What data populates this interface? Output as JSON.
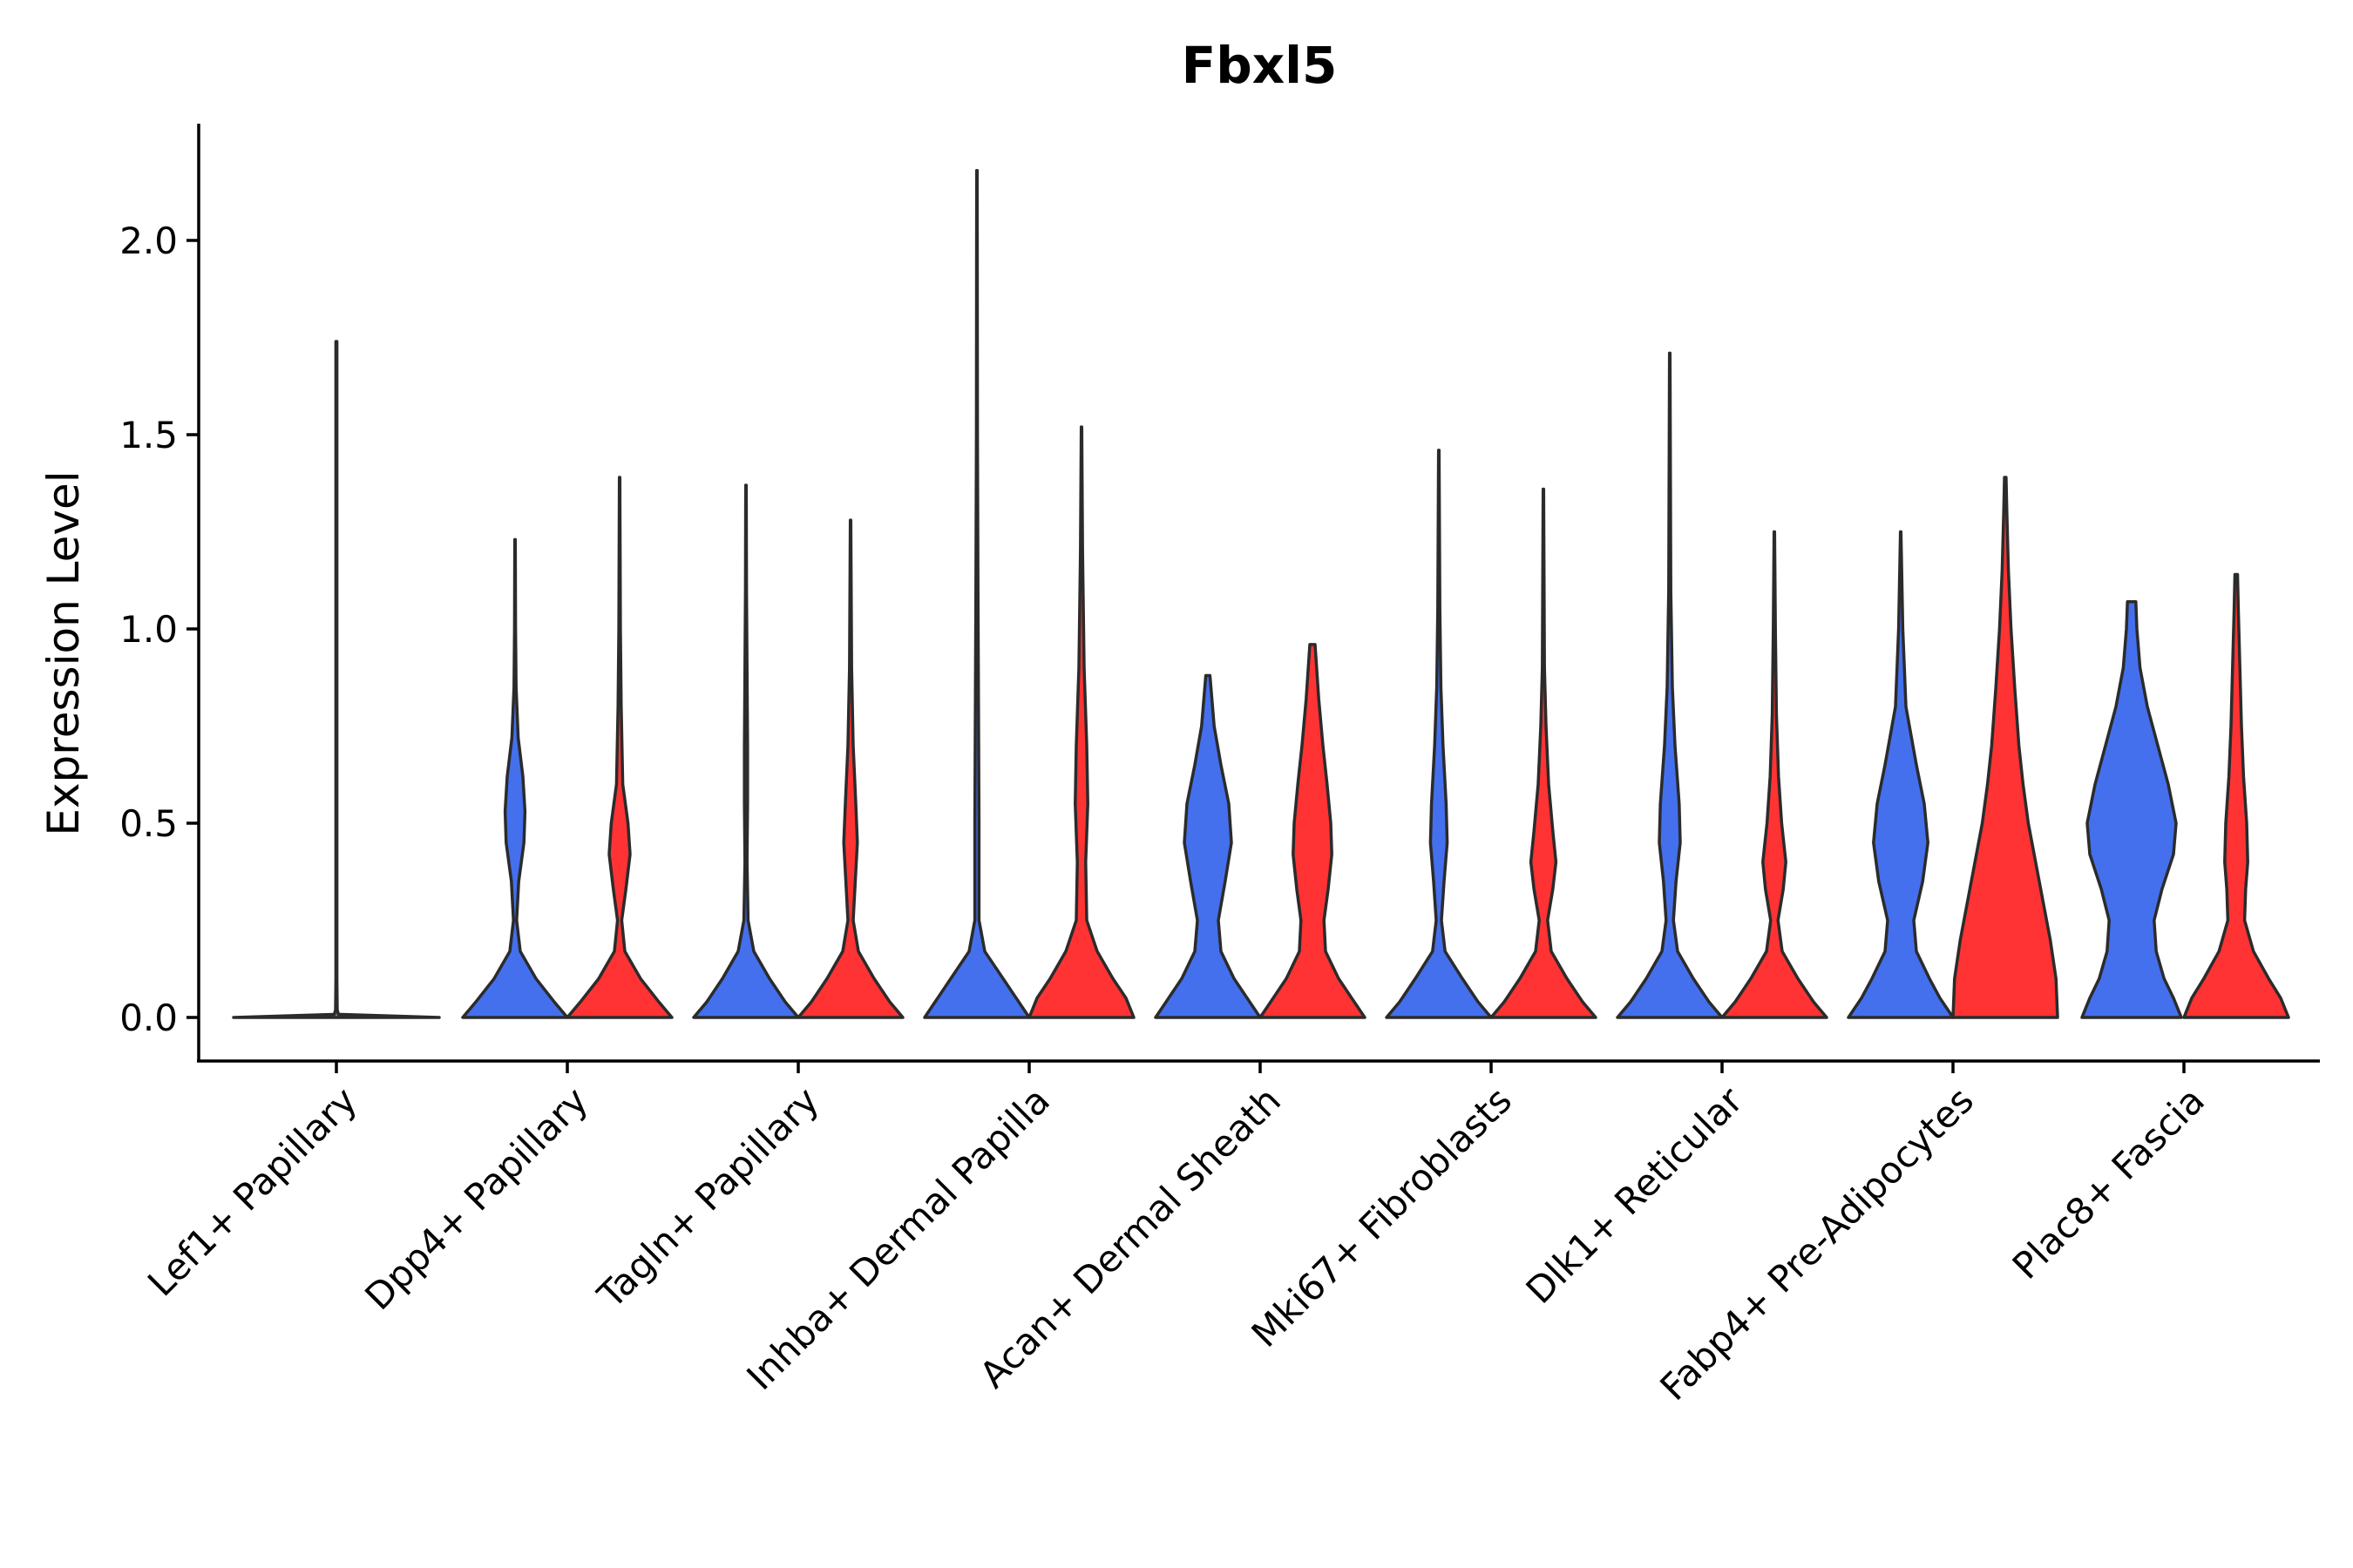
{
  "chart_data": {
    "type": "violin",
    "title": "Fbxl5",
    "xlabel": "",
    "ylabel": "Expression Level",
    "ylim": [
      -0.11,
      2.3
    ],
    "yticks": [
      0.0,
      0.5,
      1.0,
      1.5,
      2.0
    ],
    "ytick_labels": [
      "0.0",
      "0.5",
      "1.0",
      "1.5",
      "2.0"
    ],
    "categories": [
      "Lef1+ Papillary",
      "Dpp4+ Papillary",
      "Tagln+ Papillary",
      "Inhba+ Dermal Papilla",
      "Acan+ Dermal Sheath",
      "Mki67+ Fibroblasts",
      "Dlk1+ Reticular",
      "Fabp4+ Pre-Adipocytes",
      "Plac8+ Fascia"
    ],
    "series_colors": {
      "blue": "#4470EE",
      "red": "#FF3333",
      "grey": "#888888"
    },
    "violins": [
      {
        "category": "Lef1+ Papillary",
        "group": "grey",
        "max": 1.74,
        "profile": [
          [
            0,
            1
          ],
          [
            0.008,
            0.02
          ],
          [
            0.02,
            0.008
          ],
          [
            0.1,
            0.005
          ],
          [
            1.74,
            0.005
          ]
        ]
      },
      {
        "category": "Dpp4+ Papillary",
        "group": "blue",
        "max": 1.23,
        "profile": [
          [
            0,
            1
          ],
          [
            0.04,
            0.75
          ],
          [
            0.1,
            0.4
          ],
          [
            0.17,
            0.1
          ],
          [
            0.25,
            0.03
          ],
          [
            0.35,
            0.07
          ],
          [
            0.45,
            0.17
          ],
          [
            0.53,
            0.19
          ],
          [
            0.62,
            0.15
          ],
          [
            0.72,
            0.06
          ],
          [
            0.85,
            0.02
          ],
          [
            1.0,
            0.01
          ],
          [
            1.23,
            0.005
          ]
        ]
      },
      {
        "category": "Dpp4+ Papillary",
        "group": "red",
        "max": 1.39,
        "profile": [
          [
            0,
            1
          ],
          [
            0.04,
            0.75
          ],
          [
            0.1,
            0.4
          ],
          [
            0.17,
            0.1
          ],
          [
            0.25,
            0.04
          ],
          [
            0.33,
            0.12
          ],
          [
            0.42,
            0.2
          ],
          [
            0.5,
            0.16
          ],
          [
            0.6,
            0.06
          ],
          [
            0.8,
            0.03
          ],
          [
            1.0,
            0.015
          ],
          [
            1.39,
            0.005
          ]
        ]
      },
      {
        "category": "Tagln+ Papillary",
        "group": "blue",
        "max": 1.37,
        "profile": [
          [
            0,
            1
          ],
          [
            0.04,
            0.75
          ],
          [
            0.1,
            0.45
          ],
          [
            0.17,
            0.15
          ],
          [
            0.25,
            0.04
          ],
          [
            0.4,
            0.02
          ],
          [
            0.55,
            0.03
          ],
          [
            0.7,
            0.03
          ],
          [
            0.9,
            0.02
          ],
          [
            1.1,
            0.01
          ],
          [
            1.37,
            0.005
          ]
        ]
      },
      {
        "category": "Tagln+ Papillary",
        "group": "red",
        "max": 1.28,
        "profile": [
          [
            0,
            1
          ],
          [
            0.04,
            0.75
          ],
          [
            0.1,
            0.45
          ],
          [
            0.17,
            0.15
          ],
          [
            0.25,
            0.05
          ],
          [
            0.35,
            0.09
          ],
          [
            0.45,
            0.13
          ],
          [
            0.55,
            0.1
          ],
          [
            0.7,
            0.05
          ],
          [
            0.9,
            0.02
          ],
          [
            1.28,
            0.005
          ]
        ]
      },
      {
        "category": "Inhba+ Dermal Papilla",
        "group": "blue",
        "max": 2.18,
        "profile": [
          [
            0,
            1
          ],
          [
            0.04,
            0.8
          ],
          [
            0.1,
            0.5
          ],
          [
            0.17,
            0.15
          ],
          [
            0.25,
            0.04
          ],
          [
            0.5,
            0.04
          ],
          [
            0.8,
            0.03
          ],
          [
            1.1,
            0.02
          ],
          [
            1.5,
            0.01
          ],
          [
            2.18,
            0.005
          ]
        ]
      },
      {
        "category": "Inhba+ Dermal Papilla",
        "group": "red",
        "max": 1.52,
        "profile": [
          [
            0,
            1
          ],
          [
            0.05,
            0.85
          ],
          [
            0.1,
            0.6
          ],
          [
            0.17,
            0.3
          ],
          [
            0.25,
            0.1
          ],
          [
            0.4,
            0.08
          ],
          [
            0.55,
            0.12
          ],
          [
            0.7,
            0.1
          ],
          [
            0.9,
            0.05
          ],
          [
            1.2,
            0.02
          ],
          [
            1.52,
            0.005
          ]
        ]
      },
      {
        "category": "Acan+ Dermal Sheath",
        "group": "blue",
        "max": 0.88,
        "profile": [
          [
            0,
            1
          ],
          [
            0.05,
            0.75
          ],
          [
            0.1,
            0.5
          ],
          [
            0.17,
            0.25
          ],
          [
            0.25,
            0.2
          ],
          [
            0.35,
            0.33
          ],
          [
            0.45,
            0.45
          ],
          [
            0.55,
            0.4
          ],
          [
            0.65,
            0.25
          ],
          [
            0.75,
            0.12
          ],
          [
            0.88,
            0.04
          ]
        ]
      },
      {
        "category": "Acan+ Dermal Sheath",
        "group": "red",
        "max": 0.96,
        "profile": [
          [
            0,
            1
          ],
          [
            0.05,
            0.75
          ],
          [
            0.1,
            0.5
          ],
          [
            0.17,
            0.25
          ],
          [
            0.25,
            0.22
          ],
          [
            0.33,
            0.3
          ],
          [
            0.42,
            0.37
          ],
          [
            0.5,
            0.35
          ],
          [
            0.6,
            0.28
          ],
          [
            0.7,
            0.2
          ],
          [
            0.82,
            0.12
          ],
          [
            0.96,
            0.05
          ]
        ]
      },
      {
        "category": "Mki67+ Fibroblasts",
        "group": "blue",
        "max": 1.46,
        "profile": [
          [
            0,
            1
          ],
          [
            0.04,
            0.75
          ],
          [
            0.1,
            0.45
          ],
          [
            0.17,
            0.12
          ],
          [
            0.25,
            0.05
          ],
          [
            0.35,
            0.1
          ],
          [
            0.45,
            0.16
          ],
          [
            0.55,
            0.14
          ],
          [
            0.7,
            0.08
          ],
          [
            0.85,
            0.04
          ],
          [
            1.05,
            0.02
          ],
          [
            1.46,
            0.005
          ]
        ]
      },
      {
        "category": "Mki67+ Fibroblasts",
        "group": "red",
        "max": 1.36,
        "profile": [
          [
            0,
            1
          ],
          [
            0.04,
            0.75
          ],
          [
            0.1,
            0.45
          ],
          [
            0.17,
            0.15
          ],
          [
            0.25,
            0.08
          ],
          [
            0.33,
            0.18
          ],
          [
            0.4,
            0.24
          ],
          [
            0.48,
            0.18
          ],
          [
            0.6,
            0.1
          ],
          [
            0.75,
            0.05
          ],
          [
            0.9,
            0.02
          ],
          [
            1.36,
            0.005
          ]
        ]
      },
      {
        "category": "Dlk1+ Reticular",
        "group": "blue",
        "max": 1.71,
        "profile": [
          [
            0,
            1
          ],
          [
            0.04,
            0.75
          ],
          [
            0.1,
            0.45
          ],
          [
            0.17,
            0.15
          ],
          [
            0.25,
            0.07
          ],
          [
            0.35,
            0.12
          ],
          [
            0.45,
            0.2
          ],
          [
            0.55,
            0.18
          ],
          [
            0.7,
            0.1
          ],
          [
            0.85,
            0.05
          ],
          [
            1.1,
            0.02
          ],
          [
            1.71,
            0.005
          ]
        ]
      },
      {
        "category": "Dlk1+ Reticular",
        "group": "red",
        "max": 1.25,
        "profile": [
          [
            0,
            1
          ],
          [
            0.04,
            0.75
          ],
          [
            0.1,
            0.45
          ],
          [
            0.17,
            0.15
          ],
          [
            0.25,
            0.07
          ],
          [
            0.33,
            0.17
          ],
          [
            0.4,
            0.22
          ],
          [
            0.5,
            0.14
          ],
          [
            0.62,
            0.08
          ],
          [
            0.78,
            0.04
          ],
          [
            1.0,
            0.02
          ],
          [
            1.25,
            0.005
          ]
        ]
      },
      {
        "category": "Fabp4+ Pre-Adipocytes",
        "group": "blue",
        "max": 1.25,
        "profile": [
          [
            0,
            1
          ],
          [
            0.05,
            0.75
          ],
          [
            0.1,
            0.55
          ],
          [
            0.17,
            0.3
          ],
          [
            0.25,
            0.25
          ],
          [
            0.35,
            0.42
          ],
          [
            0.45,
            0.52
          ],
          [
            0.55,
            0.45
          ],
          [
            0.65,
            0.3
          ],
          [
            0.8,
            0.1
          ],
          [
            1.0,
            0.04
          ],
          [
            1.25,
            0.005
          ]
        ]
      },
      {
        "category": "Fabp4+ Pre-Adipocytes",
        "group": "red",
        "max": 1.39,
        "profile": [
          [
            0,
            1
          ],
          [
            0.1,
            0.97
          ],
          [
            0.2,
            0.86
          ],
          [
            0.3,
            0.72
          ],
          [
            0.4,
            0.58
          ],
          [
            0.5,
            0.44
          ],
          [
            0.6,
            0.34
          ],
          [
            0.7,
            0.26
          ],
          [
            0.85,
            0.18
          ],
          [
            1.0,
            0.11
          ],
          [
            1.15,
            0.06
          ],
          [
            1.3,
            0.03
          ],
          [
            1.39,
            0.015
          ]
        ]
      },
      {
        "category": "Plac8+ Fascia",
        "group": "blue",
        "max": 1.07,
        "profile": [
          [
            0,
            0.95
          ],
          [
            0.05,
            0.8
          ],
          [
            0.1,
            0.62
          ],
          [
            0.17,
            0.47
          ],
          [
            0.25,
            0.43
          ],
          [
            0.33,
            0.58
          ],
          [
            0.42,
            0.8
          ],
          [
            0.5,
            0.85
          ],
          [
            0.6,
            0.7
          ],
          [
            0.7,
            0.5
          ],
          [
            0.8,
            0.3
          ],
          [
            0.9,
            0.16
          ],
          [
            1.0,
            0.1
          ],
          [
            1.07,
            0.08
          ]
        ]
      },
      {
        "category": "Plac8+ Fascia",
        "group": "red",
        "max": 1.14,
        "profile": [
          [
            0,
            1
          ],
          [
            0.05,
            0.85
          ],
          [
            0.1,
            0.62
          ],
          [
            0.17,
            0.33
          ],
          [
            0.25,
            0.16
          ],
          [
            0.33,
            0.18
          ],
          [
            0.4,
            0.22
          ],
          [
            0.5,
            0.2
          ],
          [
            0.62,
            0.14
          ],
          [
            0.75,
            0.1
          ],
          [
            0.9,
            0.07
          ],
          [
            1.05,
            0.04
          ],
          [
            1.14,
            0.025
          ]
        ]
      }
    ]
  }
}
